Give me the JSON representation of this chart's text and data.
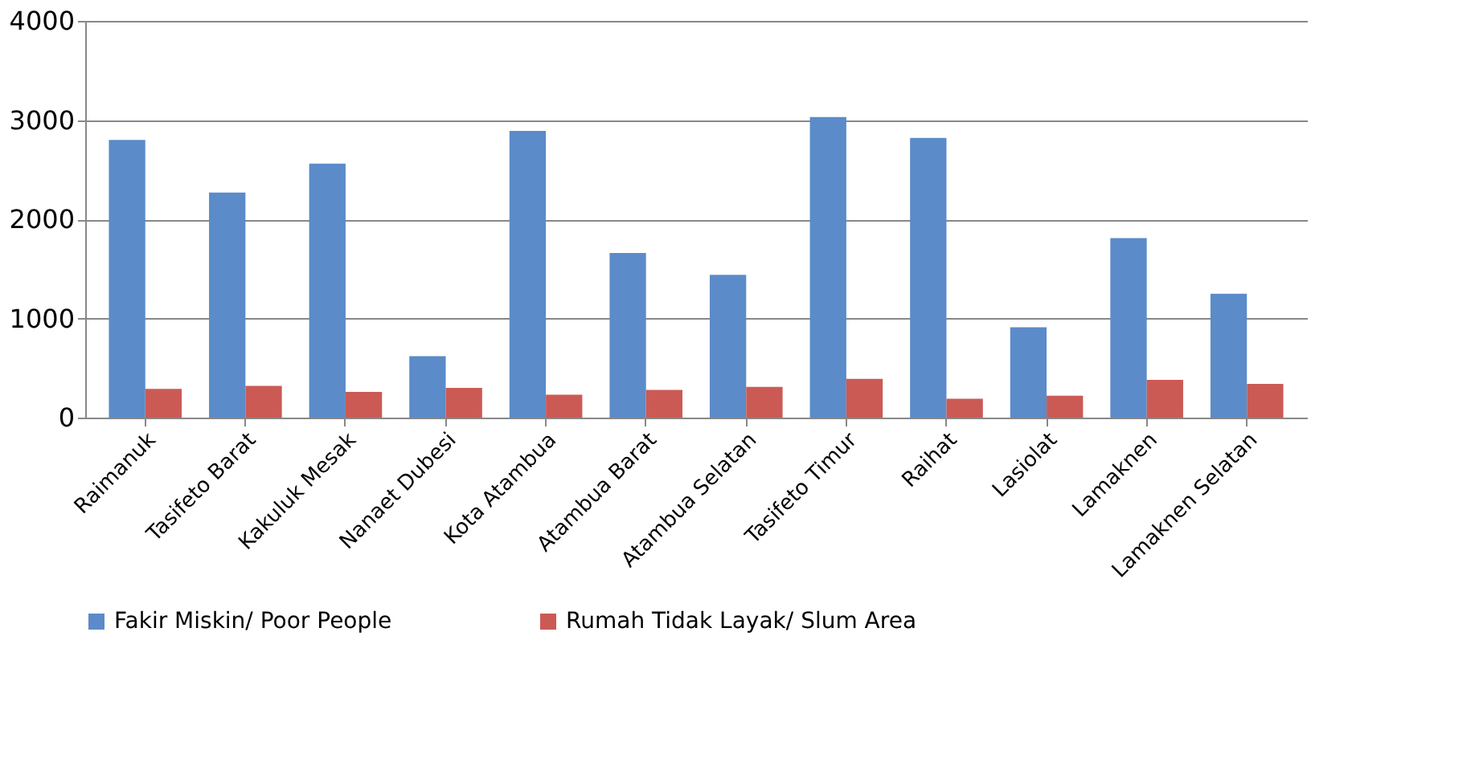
{
  "chart_data": {
    "type": "bar",
    "categories": [
      "Raimanuk",
      "Tasifeto Barat",
      "Kakuluk Mesak",
      "Nanaet Dubesi",
      "Kota Atambua",
      "Atambua Barat",
      "Atambua Selatan",
      "Tasifeto Timur",
      "Raihat",
      "Lasiolat",
      "Lamaknen",
      "Lamaknen Selatan"
    ],
    "series": [
      {
        "name": "Fakir Miskin/ Poor People",
        "color": "#5b8bc9",
        "values": [
          2800,
          2270,
          2560,
          620,
          2890,
          1660,
          1440,
          3030,
          2820,
          910,
          1810,
          1250
        ]
      },
      {
        "name": "Rumah Tidak Layak/ Slum Area",
        "color": "#cb5a55",
        "values": [
          290,
          320,
          260,
          300,
          230,
          280,
          310,
          390,
          190,
          220,
          380,
          340
        ]
      }
    ],
    "ylim": [
      0,
      4000
    ],
    "yticks": [
      0,
      1000,
      2000,
      3000,
      4000
    ],
    "grid": "y",
    "legend": "bottom"
  }
}
